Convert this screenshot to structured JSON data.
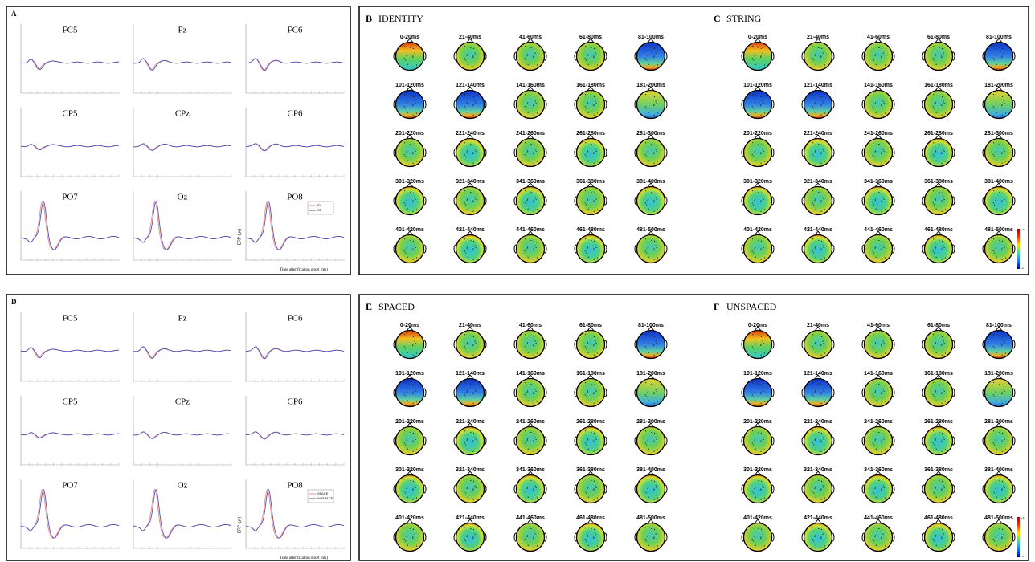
{
  "erp_panels": [
    {
      "letter": "A",
      "legend": [
        "ID",
        "ST"
      ]
    },
    {
      "letter": "D",
      "legend": [
        "SPACE",
        "NOSPACE"
      ]
    }
  ],
  "channels": [
    "FC5",
    "Fz",
    "FC6",
    "CP5",
    "CPz",
    "CP6",
    "PO7",
    "Oz",
    "PO8"
  ],
  "y_axis_label": "ERP (µv)",
  "x_axis_label": "Time after fixation onset (ms)",
  "topo_panels": [
    {
      "letter": "B",
      "title": "IDENTITY"
    },
    {
      "letter": "C",
      "title": "STRING"
    },
    {
      "letter": "E",
      "title": "SPACED"
    },
    {
      "letter": "F",
      "title": "UNSPACED"
    }
  ],
  "time_windows": [
    "0-20ms",
    "21-40ms",
    "41-60ms",
    "61-80ms",
    "81-100ms",
    "101-120ms",
    "121-140ms",
    "141-160ms",
    "161-180ms",
    "181-200ms",
    "201-220ms",
    "221-240ms",
    "241-260ms",
    "261-280ms",
    "281-300ms",
    "301-320ms",
    "321-340ms",
    "341-360ms",
    "361-380ms",
    "381-400ms",
    "401-420ms",
    "421-440ms",
    "441-460ms",
    "461-480ms",
    "481-500ms"
  ],
  "colorbar": {
    "max": "+3",
    "min": "-3"
  }
}
